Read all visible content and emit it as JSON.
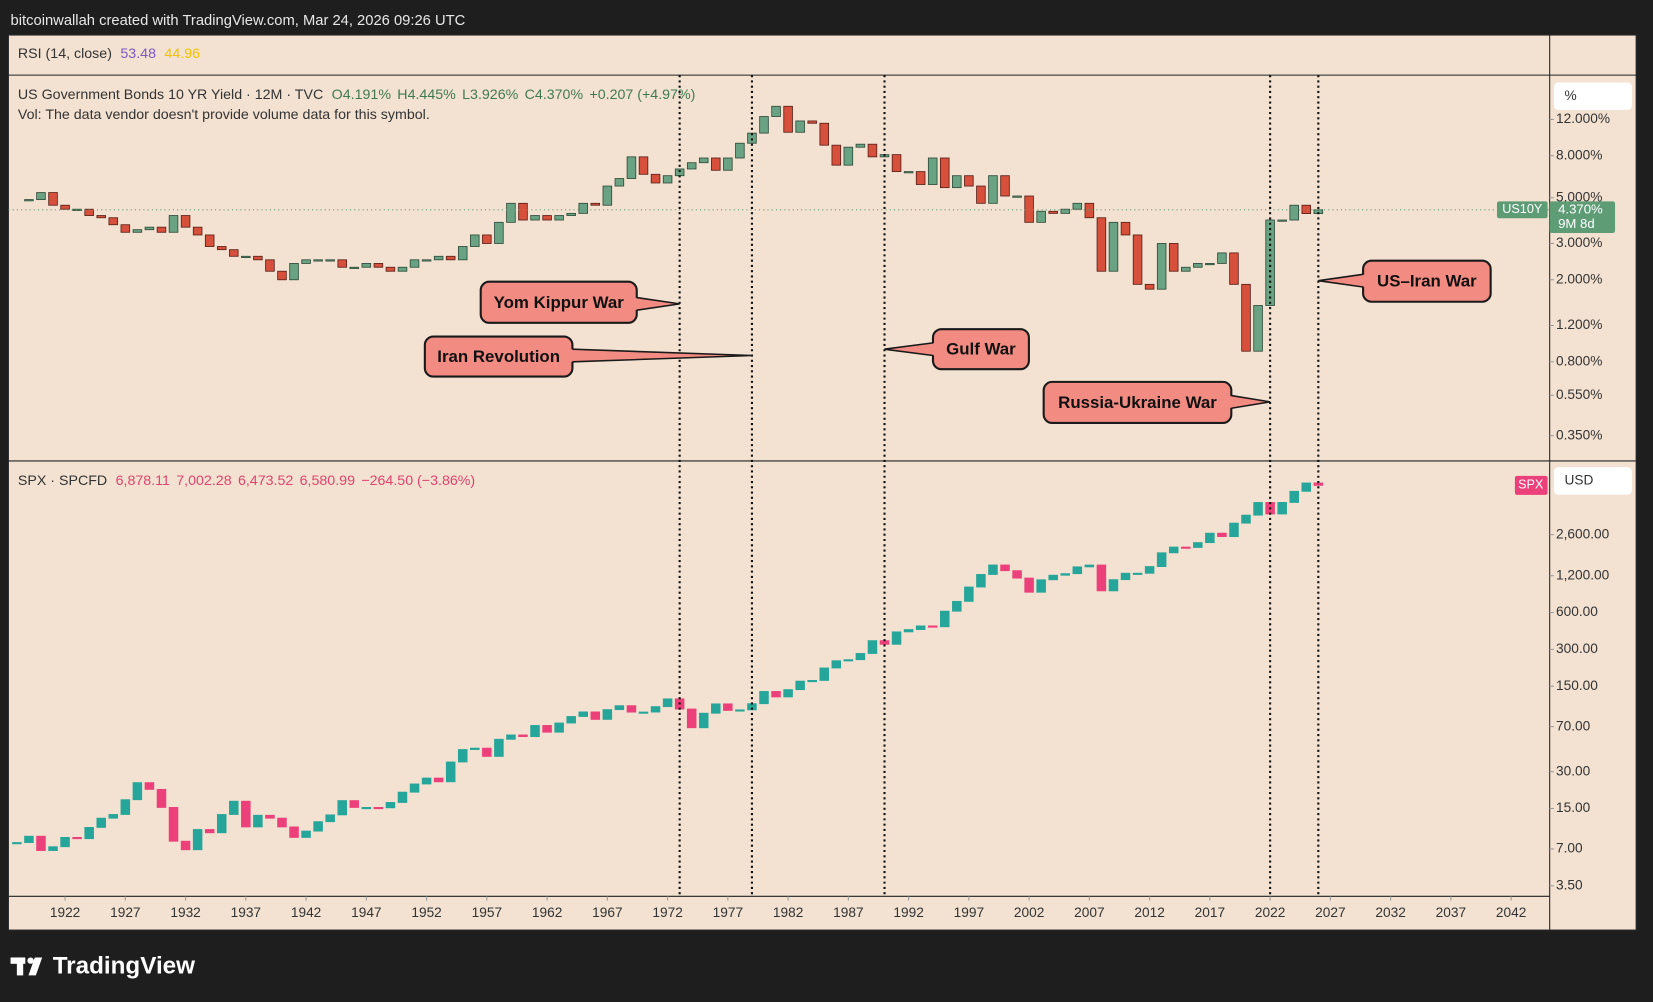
{
  "header": {
    "attribution": "bitcoinwallah created with TradingView.com, Mar 24, 2026 09:26 UTC"
  },
  "rsi": {
    "label": "RSI (14, close)",
    "values": [
      53.48,
      44.96
    ],
    "colors": [
      "#7e57c2",
      "#f2c200"
    ]
  },
  "annotations": [
    {
      "text": "Yom Kippur War",
      "x": 1973
    },
    {
      "text": "Iran Revolution",
      "x": 1979
    },
    {
      "text": "Gulf War",
      "x": 1990
    },
    {
      "text": "Russia-Ukraine War",
      "x": 2022
    },
    {
      "text": "US–Iran War",
      "x": 2026
    }
  ],
  "footer": {
    "brand": "TradingView"
  },
  "chart_data": [
    {
      "type": "candlestick",
      "title": "US Government Bonds 10 YR Yield · 12M · TVC",
      "ohlc_labels": [
        "O4.191%",
        "H4.445%",
        "L3.926%",
        "C4.370%",
        "+0.207 (+4.97%)"
      ],
      "note": "Vol: The data vendor doesn't provide volume data for this symbol.",
      "unit_label": "%",
      "symbol_tag": "US10Y",
      "last_label": "4.370%",
      "countdown": "9M 8d",
      "colors": {
        "up": "#6aa383",
        "down": "#d6503c",
        "up_edge": "#2f4c3b",
        "down_edge": "#5b2119",
        "header": "#3f7a4f",
        "tag": "#5e9c76"
      },
      "log_scale": true,
      "grid": false,
      "xlim": [
        1917.3,
        2045.2
      ],
      "ylim": [
        0.264,
        19.7
      ],
      "yticks": [
        {
          "value": 12,
          "label": "12.000%"
        },
        {
          "value": 8,
          "label": "8.000%"
        },
        {
          "value": 5,
          "label": "5.000%"
        },
        {
          "value": 3,
          "label": "3.000%"
        },
        {
          "value": 2,
          "label": "2.000%"
        },
        {
          "value": 1.2,
          "label": "1.200%"
        },
        {
          "value": 0.8,
          "label": "0.800%"
        },
        {
          "value": 0.55,
          "label": "0.550%"
        },
        {
          "value": 0.35,
          "label": "0.350%"
        }
      ],
      "x": [
        1919,
        1920,
        1921,
        1922,
        1923,
        1924,
        1925,
        1926,
        1927,
        1928,
        1929,
        1930,
        1931,
        1932,
        1933,
        1934,
        1935,
        1936,
        1937,
        1938,
        1939,
        1940,
        1941,
        1942,
        1943,
        1944,
        1945,
        1946,
        1947,
        1948,
        1949,
        1950,
        1951,
        1952,
        1953,
        1954,
        1955,
        1956,
        1957,
        1958,
        1959,
        1960,
        1961,
        1962,
        1963,
        1964,
        1965,
        1966,
        1967,
        1968,
        1969,
        1970,
        1971,
        1972,
        1973,
        1974,
        1975,
        1976,
        1977,
        1978,
        1979,
        1980,
        1981,
        1982,
        1983,
        1984,
        1985,
        1986,
        1987,
        1988,
        1989,
        1990,
        1991,
        1992,
        1993,
        1994,
        1995,
        1996,
        1997,
        1998,
        1999,
        2000,
        2001,
        2002,
        2003,
        2004,
        2005,
        2006,
        2007,
        2008,
        2009,
        2010,
        2011,
        2012,
        2013,
        2014,
        2015,
        2016,
        2017,
        2018,
        2019,
        2020,
        2021,
        2022,
        2023,
        2024,
        2025,
        2026
      ],
      "values": [
        4.9,
        5.3,
        4.6,
        4.4,
        4.4,
        4.1,
        4.0,
        3.7,
        3.4,
        3.5,
        3.6,
        3.4,
        4.1,
        3.6,
        3.3,
        2.9,
        2.8,
        2.6,
        2.6,
        2.5,
        2.2,
        2.0,
        2.4,
        2.5,
        2.5,
        2.5,
        2.3,
        2.3,
        2.4,
        2.3,
        2.2,
        2.3,
        2.5,
        2.5,
        2.6,
        2.5,
        2.9,
        3.3,
        3.0,
        3.8,
        4.7,
        3.9,
        4.1,
        3.9,
        4.1,
        4.2,
        4.7,
        4.6,
        5.7,
        6.2,
        7.9,
        6.5,
        5.9,
        6.4,
        6.9,
        7.4,
        7.8,
        6.8,
        7.8,
        9.2,
        10.3,
        12.4,
        13.9,
        10.4,
        11.8,
        11.5,
        9.0,
        7.2,
        8.8,
        9.1,
        7.9,
        8.1,
        6.7,
        6.7,
        5.8,
        7.8,
        5.6,
        6.4,
        5.7,
        4.7,
        6.4,
        5.1,
        5.1,
        3.8,
        4.3,
        4.2,
        4.4,
        4.7,
        4.0,
        2.2,
        3.8,
        3.3,
        1.9,
        1.8,
        3.0,
        2.2,
        2.3,
        2.4,
        2.4,
        2.7,
        1.9,
        0.9,
        1.5,
        3.9,
        3.9,
        4.6,
        4.191,
        4.37
      ]
    },
    {
      "type": "candlestick",
      "title": "SPX · SPCFD",
      "ohlc_labels": [
        "6,878.11",
        "7,002.28",
        "6,473.52",
        "6,580.99",
        "−264.50 (−3.86%)"
      ],
      "unit_label": "USD",
      "symbol_tag": "SPX",
      "colors": {
        "up": "#26a69a",
        "down": "#ec407a",
        "up_edge": "#26a69a",
        "down_edge": "#ec407a",
        "header": "#e0436e",
        "tag": "#ec407a"
      },
      "log_scale": true,
      "grid": false,
      "xlim": [
        1917.3,
        2045.2
      ],
      "xticks": [
        1922,
        1927,
        1932,
        1937,
        1942,
        1947,
        1952,
        1957,
        1962,
        1967,
        1972,
        1977,
        1982,
        1987,
        1992,
        1997,
        2002,
        2007,
        2012,
        2017,
        2022,
        2027,
        2032,
        2037,
        2042
      ],
      "ylim": [
        2.87,
        10420
      ],
      "yticks": [
        {
          "value": 2600,
          "label": "2,600.00"
        },
        {
          "value": 1200,
          "label": "1,200.00"
        },
        {
          "value": 600,
          "label": "600.00"
        },
        {
          "value": 300,
          "label": "300.00"
        },
        {
          "value": 150,
          "label": "150.00"
        },
        {
          "value": 70,
          "label": "70.00"
        },
        {
          "value": 30,
          "label": "30.00"
        },
        {
          "value": 15,
          "label": "15.00"
        },
        {
          "value": 7,
          "label": "7.00"
        },
        {
          "value": 3.5,
          "label": "3.50"
        }
      ],
      "x": [
        1918,
        1919,
        1920,
        1921,
        1922,
        1923,
        1924,
        1925,
        1926,
        1927,
        1928,
        1929,
        1930,
        1931,
        1932,
        1933,
        1934,
        1935,
        1936,
        1937,
        1938,
        1939,
        1940,
        1941,
        1942,
        1943,
        1944,
        1945,
        1946,
        1947,
        1948,
        1949,
        1950,
        1951,
        1952,
        1953,
        1954,
        1955,
        1956,
        1957,
        1958,
        1959,
        1960,
        1961,
        1962,
        1963,
        1964,
        1965,
        1966,
        1967,
        1968,
        1969,
        1970,
        1971,
        1972,
        1973,
        1974,
        1975,
        1976,
        1977,
        1978,
        1979,
        1980,
        1981,
        1982,
        1983,
        1984,
        1985,
        1986,
        1987,
        1988,
        1989,
        1990,
        1991,
        1992,
        1993,
        1994,
        1995,
        1996,
        1997,
        1998,
        1999,
        2000,
        2001,
        2002,
        2003,
        2004,
        2005,
        2006,
        2007,
        2008,
        2009,
        2010,
        2011,
        2012,
        2013,
        2014,
        2015,
        2016,
        2017,
        2018,
        2019,
        2020,
        2021,
        2022,
        2023,
        2024,
        2025,
        2026
      ],
      "values": [
        7.9,
        8.9,
        6.8,
        7.3,
        8.7,
        8.5,
        10.5,
        12.5,
        13.4,
        17.7,
        24.4,
        21.5,
        15.3,
        8.1,
        6.9,
        10.1,
        9.5,
        13.4,
        17.2,
        10.6,
        13.2,
        12.5,
        10.6,
        8.7,
        9.8,
        11.7,
        13.3,
        17.4,
        15.3,
        15.3,
        15.2,
        16.8,
        20.4,
        23.8,
        26.6,
        24.8,
        36.0,
        45.5,
        46.7,
        40.0,
        55.2,
        59.9,
        58.1,
        71.6,
        63.1,
        75.0,
        84.8,
        92.4,
        80.3,
        96.5,
        103.9,
        92.1,
        92.2,
        102.1,
        118.1,
        97.6,
        68.6,
        90.2,
        107.5,
        95.1,
        96.1,
        107.9,
        135.8,
        122.6,
        140.6,
        164.9,
        167.2,
        211.3,
        242.2,
        247.1,
        277.7,
        353.4,
        330.2,
        417.1,
        435.7,
        466.5,
        459.3,
        615.9,
        740.7,
        970.4,
        1229,
        1469,
        1320,
        1148,
        880,
        1112,
        1212,
        1248,
        1418,
        1468,
        903,
        1115,
        1258,
        1258,
        1426,
        1848,
        2059,
        2044,
        2239,
        2674,
        2507,
        3231,
        3756,
        4766,
        3840,
        4770,
        5882,
        6878.11,
        6580.99
      ]
    }
  ]
}
